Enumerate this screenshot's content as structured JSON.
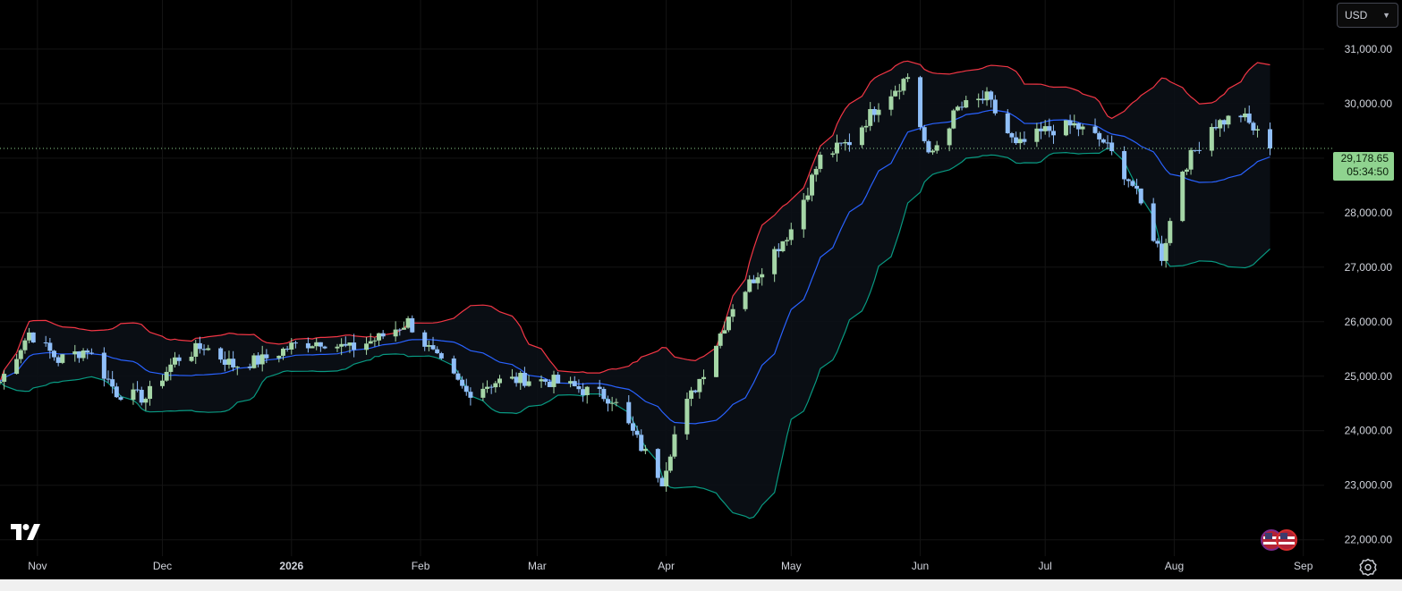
{
  "currency": {
    "label": "USD"
  },
  "last_price": {
    "value": "29,178.65",
    "countdown": "05:34:50"
  },
  "icons": {
    "logo": "tradingview-logo-icon",
    "settings": "gear-icon",
    "flags": "us-flag-icon"
  },
  "colors": {
    "background": "#000000",
    "up_candle": "#a5d6a7",
    "down_candle": "#90bff9",
    "upper_band": "#f23645",
    "middle_band": "#2962ff",
    "lower_band": "#089981",
    "band_fill": "#0b1016",
    "grid": "#141414",
    "axis_text": "#d1d4dc"
  },
  "chart_data": {
    "type": "candlestick",
    "y_axis": {
      "min": 21700,
      "max": 31900,
      "ticks": [
        "22,000.00",
        "23,000.00",
        "24,000.00",
        "25,000.00",
        "26,000.00",
        "27,000.00",
        "28,000.00",
        "29,000.00",
        "30,000.00",
        "31,000.00"
      ],
      "tick_values": [
        22000,
        23000,
        24000,
        25000,
        26000,
        27000,
        28000,
        29000,
        30000,
        31000
      ]
    },
    "x_axis": {
      "start": "2025-10-23",
      "end": "2026-09-06",
      "ticks": [
        {
          "label": "Nov",
          "date": "2025-11-01"
        },
        {
          "label": "Dec",
          "date": "2025-12-01"
        },
        {
          "label": "2026",
          "date": "2026-01-01"
        },
        {
          "label": "Feb",
          "date": "2026-02-01"
        },
        {
          "label": "Mar",
          "date": "2026-03-01"
        },
        {
          "label": "Apr",
          "date": "2026-04-01"
        },
        {
          "label": "May",
          "date": "2026-05-01"
        },
        {
          "label": "Jun",
          "date": "2026-06-01"
        },
        {
          "label": "Jul",
          "date": "2026-07-01"
        },
        {
          "label": "Aug",
          "date": "2026-08-01"
        },
        {
          "label": "Sep",
          "date": "2026-09-01"
        }
      ]
    },
    "last_value": 29178.65,
    "series": [
      {
        "name": "Close",
        "values": [
          [
            "2025-10-23",
            24900
          ],
          [
            "2025-10-30",
            25800
          ],
          [
            "2025-11-06",
            25300
          ],
          [
            "2025-11-13",
            25500
          ],
          [
            "2025-11-20",
            24700
          ],
          [
            "2025-11-27",
            24600
          ],
          [
            "2025-12-04",
            25300
          ],
          [
            "2025-12-11",
            25550
          ],
          [
            "2025-12-18",
            25200
          ],
          [
            "2025-12-25",
            25300
          ],
          [
            "2026-01-01",
            25550
          ],
          [
            "2026-01-08",
            25650
          ],
          [
            "2026-01-15",
            25500
          ],
          [
            "2026-01-22",
            25700
          ],
          [
            "2026-01-29",
            26000
          ],
          [
            "2026-02-05",
            25300
          ],
          [
            "2026-02-12",
            24700
          ],
          [
            "2026-02-19",
            24900
          ],
          [
            "2026-02-26",
            24950
          ],
          [
            "2026-03-05",
            24900
          ],
          [
            "2026-03-12",
            24750
          ],
          [
            "2026-03-19",
            24600
          ],
          [
            "2026-03-26",
            23700
          ],
          [
            "2026-03-31",
            23100
          ],
          [
            "2026-04-04",
            24200
          ],
          [
            "2026-04-10",
            25100
          ],
          [
            "2026-04-17",
            26300
          ],
          [
            "2026-04-24",
            27000
          ],
          [
            "2026-05-01",
            27700
          ],
          [
            "2026-05-08",
            29000
          ],
          [
            "2026-05-15",
            29300
          ],
          [
            "2026-05-22",
            30000
          ],
          [
            "2026-05-29",
            30500
          ],
          [
            "2026-06-03",
            29000
          ],
          [
            "2026-06-10",
            29900
          ],
          [
            "2026-06-17",
            30100
          ],
          [
            "2026-06-24",
            29200
          ],
          [
            "2026-07-01",
            29500
          ],
          [
            "2026-07-08",
            29600
          ],
          [
            "2026-07-15",
            29300
          ],
          [
            "2026-07-22",
            28500
          ],
          [
            "2026-07-29",
            27200
          ],
          [
            "2026-08-03",
            28800
          ],
          [
            "2026-08-10",
            29600
          ],
          [
            "2026-08-17",
            29800
          ],
          [
            "2026-08-24",
            29178.65
          ]
        ]
      }
    ],
    "bollinger_bands": {
      "upper_color": "#f23645",
      "middle_color": "#2962ff",
      "lower_color": "#089981"
    }
  }
}
